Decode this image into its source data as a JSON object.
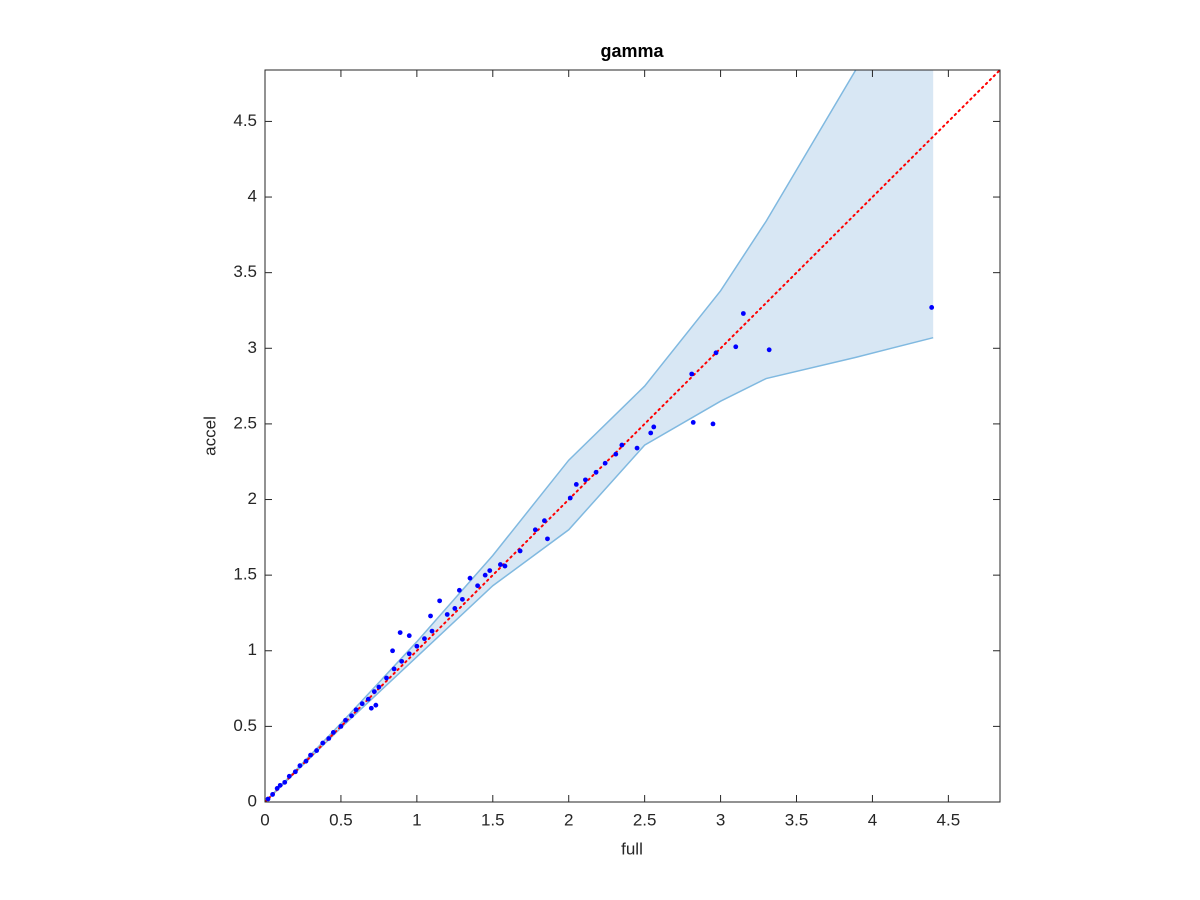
{
  "chart_data": {
    "type": "scatter",
    "title": "gamma",
    "xlabel": "full",
    "ylabel": "accel",
    "xlim": [
      0,
      4.84
    ],
    "ylim": [
      0,
      4.84
    ],
    "xticks": [
      0,
      0.5,
      1,
      1.5,
      2,
      2.5,
      3,
      3.5,
      4,
      4.5
    ],
    "yticks": [
      0,
      0.5,
      1,
      1.5,
      2,
      2.5,
      3,
      3.5,
      4,
      4.5
    ],
    "band": {
      "color": "#d8e7f4",
      "edge_color": "#80b9e0",
      "x": [
        0,
        0.5,
        1,
        1.5,
        2,
        2.5,
        3,
        3.3,
        3.89,
        4.4
      ],
      "upper": [
        0,
        0.52,
        1.06,
        1.63,
        2.26,
        2.75,
        3.38,
        3.84,
        4.84,
        5.6
      ],
      "lower": [
        0,
        0.49,
        0.96,
        1.43,
        1.8,
        2.36,
        2.65,
        2.8,
        2.94,
        3.07
      ]
    },
    "reference_line": {
      "color": "#ff0000",
      "x": [
        0,
        4.84
      ],
      "y": [
        0,
        4.84
      ]
    },
    "points": {
      "color": "#0000ff",
      "x": [
        4.39,
        3.32,
        3.1,
        2.97,
        3.15,
        2.95,
        2.82,
        2.81,
        2.56,
        2.54,
        2.45,
        2.35,
        2.31,
        2.24,
        2.18,
        2.11,
        2.05,
        2.01,
        1.86,
        1.84,
        1.78,
        1.68,
        1.58,
        1.48,
        1.35,
        1.28,
        1.15,
        1.09,
        0.89,
        0.95,
        0.84,
        0.7,
        0.73,
        0.02,
        0.05,
        0.08,
        0.1,
        0.13,
        0.16,
        0.2,
        0.23,
        0.27,
        0.3,
        0.34,
        0.38,
        0.42,
        0.45,
        0.5,
        0.53,
        0.57,
        0.6,
        0.64,
        0.68,
        0.72,
        0.75,
        0.8,
        0.85,
        0.9,
        0.95,
        1.0,
        1.05,
        1.1,
        1.2,
        1.25,
        1.3,
        1.4,
        1.45,
        1.55
      ],
      "y": [
        3.27,
        2.99,
        3.01,
        2.97,
        3.23,
        2.5,
        2.51,
        2.83,
        2.48,
        2.44,
        2.34,
        2.36,
        2.3,
        2.24,
        2.18,
        2.13,
        2.1,
        2.01,
        1.74,
        1.86,
        1.8,
        1.66,
        1.56,
        1.53,
        1.48,
        1.4,
        1.33,
        1.23,
        1.12,
        1.1,
        1.0,
        0.62,
        0.64,
        0.02,
        0.05,
        0.09,
        0.11,
        0.13,
        0.17,
        0.2,
        0.24,
        0.27,
        0.31,
        0.34,
        0.39,
        0.42,
        0.46,
        0.5,
        0.54,
        0.57,
        0.61,
        0.65,
        0.68,
        0.73,
        0.76,
        0.82,
        0.88,
        0.93,
        0.98,
        1.03,
        1.08,
        1.13,
        1.24,
        1.28,
        1.34,
        1.43,
        1.5,
        1.57
      ]
    }
  }
}
